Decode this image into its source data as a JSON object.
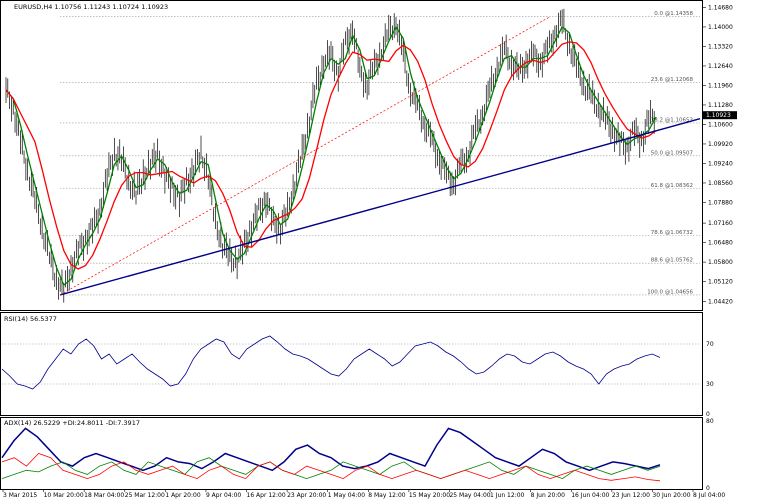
{
  "chart_data": [
    {
      "type": "line",
      "title": "EURUSD,H4  1.10756 1.11243 1.10724 1.10923",
      "ylim": [
        1.042,
        1.148
      ],
      "y_ticks": [
        "1.14680",
        "1.14000",
        "1.13320",
        "1.12640",
        "1.11960",
        "1.11280",
        "1.10600",
        "1.09920",
        "1.09240",
        "1.08560",
        "1.07880",
        "1.07160",
        "1.06480",
        "1.05800",
        "1.05120",
        "1.04420"
      ],
      "x_ticks": [
        "3 Mar 2015",
        "10 Mar 20:00",
        "18 Mar 04:00",
        "25 Mar 12:00",
        "1 Apr 20:00",
        "9 Apr 04:00",
        "16 Apr 12:00",
        "23 Apr 20:00",
        "1 May 04:00",
        "8 May 12:00",
        "15 May 20:00",
        "25 May 04:00",
        "1 Jun 12:00",
        "8 Jun 20:00",
        "16 Jun 04:00",
        "23 Jun 12:00",
        "30 Jun 20:00",
        "8 Jul 04:00"
      ],
      "current_price": "1.10923",
      "fib_levels": [
        {
          "label": "0.0 @1.14358",
          "price": 1.14358
        },
        {
          "label": "23.6 @1.12068",
          "price": 1.12068
        },
        {
          "label": "38.2 @1.10653",
          "price": 1.10653
        },
        {
          "label": "50.0 @1.09507",
          "price": 1.09507
        },
        {
          "label": "61.8 @1.08362",
          "price": 1.08362
        },
        {
          "label": "78.6 @1.06732",
          "price": 1.06732
        },
        {
          "label": "88.6 @1.05762",
          "price": 1.05762
        },
        {
          "label": "100.0 @1.04656",
          "price": 1.04656
        }
      ],
      "price_series": [
        1.118,
        1.112,
        1.1,
        1.09,
        1.08,
        1.07,
        1.06,
        1.052,
        1.048,
        1.056,
        1.062,
        1.066,
        1.07,
        1.076,
        1.088,
        1.096,
        1.094,
        1.086,
        1.082,
        1.088,
        1.092,
        1.096,
        1.088,
        1.084,
        1.08,
        1.086,
        1.09,
        1.096,
        1.088,
        1.072,
        1.064,
        1.06,
        1.058,
        1.064,
        1.07,
        1.076,
        1.08,
        1.072,
        1.07,
        1.076,
        1.086,
        1.096,
        1.108,
        1.12,
        1.128,
        1.13,
        1.124,
        1.134,
        1.14,
        1.124,
        1.12,
        1.126,
        1.132,
        1.138,
        1.142,
        1.13,
        1.118,
        1.112,
        1.106,
        1.1,
        1.094,
        1.088,
        1.086,
        1.092,
        1.096,
        1.104,
        1.11,
        1.118,
        1.126,
        1.132,
        1.128,
        1.124,
        1.128,
        1.13,
        1.128,
        1.132,
        1.138,
        1.142,
        1.134,
        1.126,
        1.12,
        1.116,
        1.112,
        1.108,
        1.104,
        1.1,
        1.098,
        1.104,
        1.1,
        1.108,
        1.1092
      ],
      "lines": [
        {
          "name": "Trendline",
          "color": "#00008b",
          "from": [
            1.04656
          ],
          "to": [
            1.108
          ]
        },
        {
          "name": "Fibonacci retracement",
          "color": "#ff0000"
        }
      ],
      "moving_averages": [
        {
          "color": "#008000"
        },
        {
          "color": "#ff0000"
        }
      ]
    },
    {
      "type": "line",
      "title": "RSI(14) 56.5377",
      "ylim": [
        0,
        100
      ],
      "y_ticks": [
        "70",
        "30",
        "0"
      ],
      "color": "#00008b",
      "values": [
        45,
        38,
        30,
        28,
        25,
        32,
        45,
        55,
        65,
        60,
        70,
        75,
        68,
        55,
        60,
        50,
        55,
        60,
        52,
        45,
        40,
        35,
        28,
        30,
        40,
        55,
        65,
        70,
        75,
        72,
        60,
        55,
        65,
        70,
        75,
        78,
        72,
        65,
        60,
        58,
        55,
        50,
        45,
        40,
        38,
        45,
        55,
        60,
        65,
        60,
        55,
        48,
        52,
        60,
        68,
        70,
        72,
        68,
        62,
        58,
        52,
        45,
        40,
        42,
        48,
        55,
        60,
        58,
        52,
        50,
        55,
        60,
        62,
        58,
        52,
        48,
        45,
        40,
        30,
        40,
        45,
        48,
        50,
        55,
        58,
        60,
        56.5
      ]
    },
    {
      "type": "line",
      "title": "ADX(14) 26.5229 +DI:24.8011 -DI:7.3917",
      "ylim": [
        0,
        80
      ],
      "y_ticks": [
        "80",
        "0"
      ],
      "series": [
        {
          "name": "ADX(14)",
          "color": "#00008b",
          "values": [
            35,
            55,
            70,
            60,
            45,
            30,
            25,
            35,
            40,
            35,
            30,
            25,
            20,
            25,
            35,
            30,
            28,
            22,
            30,
            40,
            35,
            30,
            25,
            20,
            30,
            45,
            50,
            40,
            35,
            25,
            22,
            25,
            30,
            40,
            35,
            30,
            25,
            50,
            70,
            65,
            55,
            45,
            35,
            30,
            25,
            35,
            45,
            40,
            30,
            25,
            20,
            25,
            30,
            28,
            25,
            22,
            26.5
          ]
        },
        {
          "name": "+DI",
          "color": "#008000",
          "values": [
            10,
            15,
            20,
            18,
            25,
            30,
            20,
            15,
            25,
            30,
            20,
            15,
            30,
            25,
            20,
            15,
            30,
            35,
            25,
            20,
            15,
            25,
            30,
            20,
            15,
            10,
            15,
            20,
            30,
            25,
            20,
            15,
            25,
            30,
            20,
            15,
            10,
            15,
            20,
            25,
            30,
            20,
            15,
            25,
            20,
            15,
            10,
            20,
            25,
            20,
            15,
            20,
            25,
            20,
            24.8
          ]
        },
        {
          "name": "-DI",
          "color": "#ff0000",
          "values": [
            30,
            35,
            25,
            40,
            35,
            20,
            15,
            10,
            15,
            25,
            30,
            20,
            15,
            20,
            25,
            15,
            10,
            20,
            25,
            15,
            10,
            25,
            30,
            20,
            15,
            25,
            20,
            15,
            10,
            20,
            25,
            15,
            10,
            15,
            20,
            15,
            10,
            15,
            20,
            15,
            10,
            15,
            20,
            25,
            15,
            10,
            15,
            20,
            15,
            10,
            8,
            10,
            12,
            9,
            7.4
          ]
        }
      ]
    }
  ]
}
